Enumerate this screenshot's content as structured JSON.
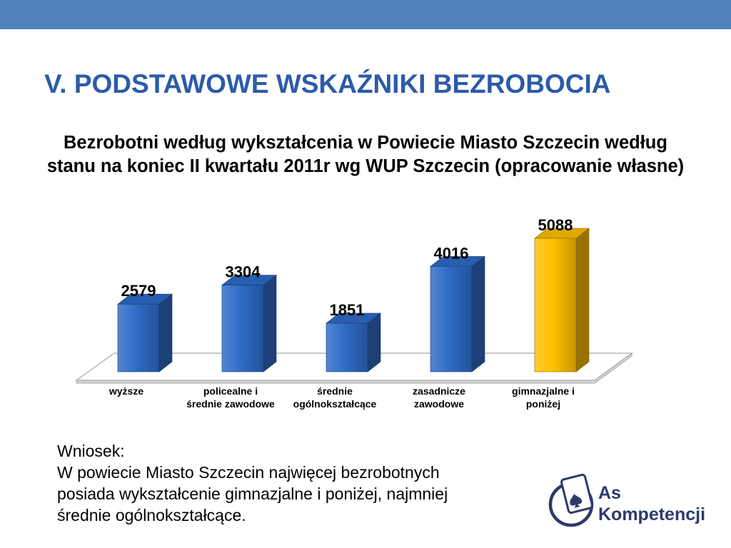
{
  "slide": {
    "title": "V. PODSTAWOWE WSKAŹNIKI BEZROBOCIA",
    "conclusion": {
      "heading": "Wniosek:",
      "text": "W powiecie Miasto Szczecin najwięcej bezrobotnych\nposiada wykształcenie gimnazjalne i poniżej, najmniej\nśrednie ogólnokształcące."
    },
    "logo": {
      "icon": "spade-card-icon",
      "top_line": "As",
      "bottom_line": "Kompetencji"
    }
  },
  "colors": {
    "top_band": "#4F81BD",
    "title": "#2C5BA8",
    "text": "#000000",
    "logo": "#2D3A6B",
    "floor": "#A6A6A6"
  },
  "chart_data": {
    "type": "bar",
    "3d": true,
    "title": "Bezrobotni według wykształcenia w Powiecie Miasto Szczecin według\nstanu na koniec II kwartału 2011r wg WUP Szczecin (opracowanie własne)",
    "categories": [
      "wyższe",
      "policealne i\nśrednie zawodowe",
      "średnie\nogólnokształcące",
      "zasadnicze\nzawodowe",
      "gimnazjalne i\nponiżej"
    ],
    "values": [
      2579,
      3304,
      1851,
      4016,
      5088
    ],
    "bar_colors": [
      "#2E6BC6",
      "#2E6BC6",
      "#2E6BC6",
      "#2E6BC6",
      "#FFC000"
    ],
    "ylim": [
      0,
      6000
    ],
    "grid": false,
    "data_labels": true
  }
}
